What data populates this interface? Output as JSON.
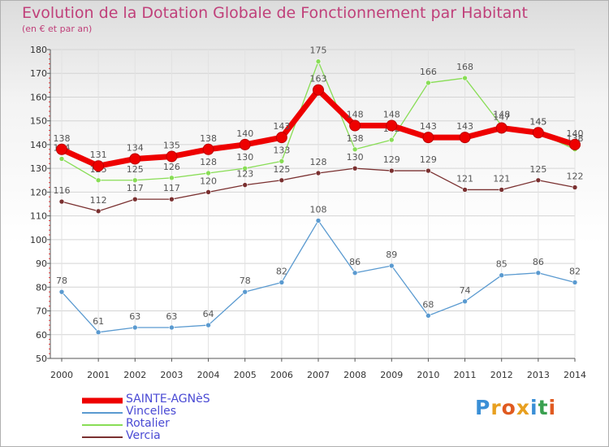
{
  "header": {
    "title": "Evolution de la Dotation Globale de Fonctionnement par Habitant",
    "subtitle": "(en € et par an)"
  },
  "logo": {
    "text": "Proxiti",
    "colors": [
      "#3a8fd6",
      "#e8a020",
      "#e05a20",
      "#e8a020",
      "#3a8fd6",
      "#3aa050",
      "#e05a20"
    ]
  },
  "chart_data": {
    "type": "line",
    "title": "Evolution de la Dotation Globale de Fonctionnement par Habitant",
    "subtitle": "(en € et par an)",
    "xlabel": "",
    "ylabel": "",
    "ylim": [
      50,
      180
    ],
    "yticks": [
      50,
      60,
      70,
      80,
      90,
      100,
      110,
      120,
      130,
      140,
      150,
      160,
      170,
      180
    ],
    "x": [
      "2000",
      "2001",
      "2002",
      "2003",
      "2004",
      "2005",
      "2006",
      "2007",
      "2008",
      "2009",
      "2010",
      "2011",
      "2012",
      "2013",
      "2014"
    ],
    "legend_position": "bottom-left",
    "series": [
      {
        "name": "SAINTE-AGNèS",
        "color": "#ee0000",
        "emphasis": true,
        "values": [
          138,
          131,
          134,
          135,
          138,
          140,
          143,
          163,
          148,
          148,
          143,
          143,
          147,
          145,
          140
        ],
        "labels": [
          "138",
          "131",
          "134",
          "135",
          "138",
          "140",
          "143",
          "163",
          "148",
          "148",
          "143",
          "143",
          "147",
          "145",
          "140"
        ]
      },
      {
        "name": "Vincelles",
        "color": "#5a9ad0",
        "values": [
          78,
          61,
          63,
          63,
          64,
          78,
          82,
          108,
          86,
          89,
          68,
          74,
          85,
          86,
          82
        ],
        "labels": [
          "78",
          "61",
          "63",
          "63",
          "64",
          "78",
          "82",
          "108",
          "86",
          "89",
          "68",
          "74",
          "85",
          "86",
          "82"
        ]
      },
      {
        "name": "Rotalier",
        "color": "#88dd55",
        "values": [
          134,
          125,
          125,
          126,
          128,
          130,
          133,
          175,
          138,
          142,
          166,
          168,
          148,
          145,
          138
        ],
        "labels": [
          "134",
          "125",
          "125",
          "126",
          "128",
          "130",
          "133",
          "175",
          "138",
          "142",
          "166",
          "168",
          "148",
          "145",
          "138"
        ]
      },
      {
        "name": "Vercia",
        "color": "#7a3030",
        "values": [
          116,
          112,
          117,
          117,
          120,
          123,
          125,
          128,
          130,
          129,
          129,
          121,
          121,
          125,
          122
        ],
        "labels": [
          "116",
          "112",
          "117",
          "117",
          "120",
          "123",
          "125",
          "128",
          "130",
          "129",
          "129",
          "121",
          "121",
          "125",
          "122"
        ]
      }
    ]
  }
}
